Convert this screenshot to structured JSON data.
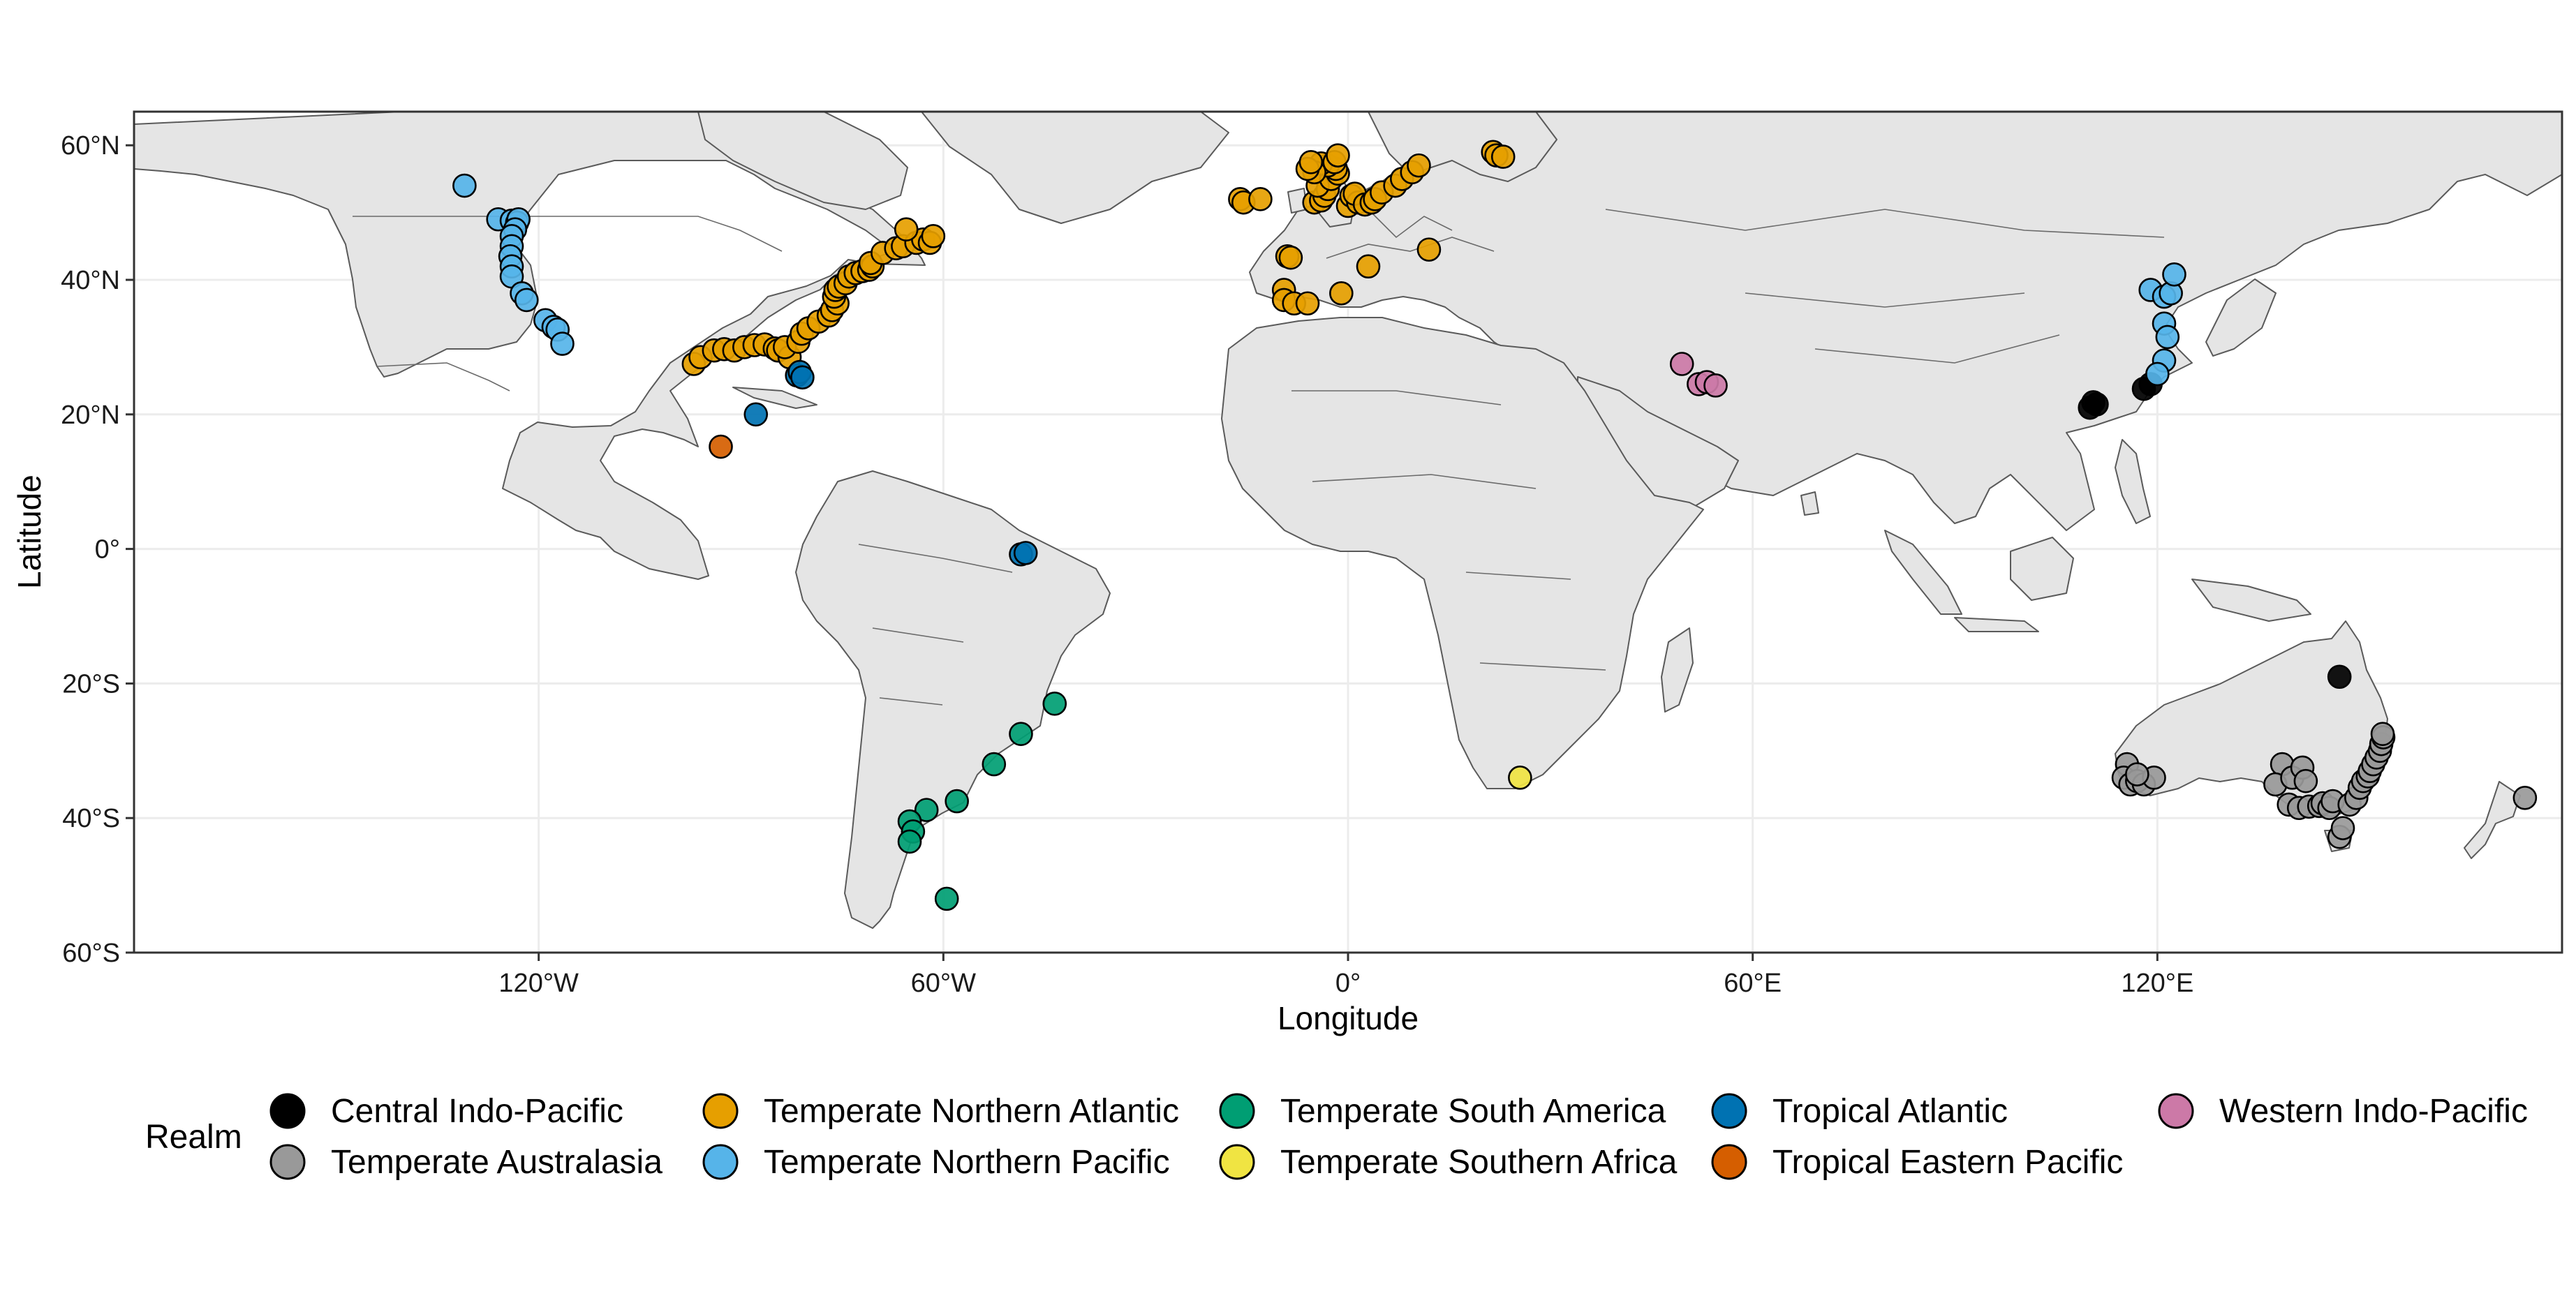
{
  "map": {
    "xlabel": "Longitude",
    "ylabel": "Latitude",
    "xlim": [
      -180,
      180
    ],
    "ylim": [
      -60,
      65
    ],
    "x_ticks": [
      {
        "value": -120,
        "label": "120°W"
      },
      {
        "value": -60,
        "label": "60°W"
      },
      {
        "value": 0,
        "label": "0°"
      },
      {
        "value": 60,
        "label": "60°E"
      },
      {
        "value": 120,
        "label": "120°E"
      }
    ],
    "y_ticks": [
      {
        "value": 60,
        "label": "60°N"
      },
      {
        "value": 40,
        "label": "40°N"
      },
      {
        "value": 20,
        "label": "20°N"
      },
      {
        "value": 0,
        "label": "0°"
      },
      {
        "value": -20,
        "label": "20°S"
      },
      {
        "value": -40,
        "label": "40°S"
      },
      {
        "value": -60,
        "label": "60°S"
      }
    ],
    "land_color": "#e5e5e5",
    "grid": true
  },
  "legend": {
    "title": "Realm",
    "position": "bottom",
    "items": [
      {
        "label": "Central Indo-Pacific",
        "color": "#000000"
      },
      {
        "label": "Temperate Australasia",
        "color": "#999999"
      },
      {
        "label": "Temperate Northern Atlantic",
        "color": "#E69F00"
      },
      {
        "label": "Temperate Northern Pacific",
        "color": "#56B4E9"
      },
      {
        "label": "Temperate South America",
        "color": "#009E73"
      },
      {
        "label": "Temperate Southern Africa",
        "color": "#F0E442"
      },
      {
        "label": "Tropical Atlantic",
        "color": "#0072B2"
      },
      {
        "label": "Tropical Eastern Pacific",
        "color": "#D55E00"
      },
      {
        "label": "Western Indo-Pacific",
        "color": "#CC79A7"
      }
    ]
  },
  "chart_data": {
    "type": "scatter",
    "xlabel": "Longitude",
    "ylabel": "Latitude",
    "xlim": [
      -180,
      180
    ],
    "ylim": [
      -60,
      65
    ],
    "series": [
      {
        "name": "Central Indo-Pacific",
        "color": "#000000",
        "points": [
          [
            111,
            21.5
          ],
          [
            110,
            21
          ],
          [
            110.5,
            21.8
          ],
          [
            118,
            23.8
          ],
          [
            119,
            24.5
          ],
          [
            147,
            -19
          ]
        ]
      },
      {
        "name": "Temperate Australasia",
        "color": "#999999",
        "points": [
          [
            115.5,
            -32
          ],
          [
            115,
            -34
          ],
          [
            116,
            -35
          ],
          [
            117,
            -34.5
          ],
          [
            118,
            -35
          ],
          [
            119.5,
            -34
          ],
          [
            117,
            -33.5
          ],
          [
            138.5,
            -32
          ],
          [
            137.5,
            -35
          ],
          [
            140,
            -34
          ],
          [
            141.5,
            -32.5
          ],
          [
            142,
            -34.5
          ],
          [
            139.5,
            -38
          ],
          [
            141,
            -38.5
          ],
          [
            142.5,
            -38.3
          ],
          [
            144,
            -38.2
          ],
          [
            144.5,
            -37.8
          ],
          [
            145.5,
            -38.5
          ],
          [
            146,
            -37.5
          ],
          [
            147,
            -42.8
          ],
          [
            147.5,
            -41.5
          ],
          [
            148.5,
            -38
          ],
          [
            149.5,
            -37
          ],
          [
            150,
            -35.5
          ],
          [
            150.5,
            -34.5
          ],
          [
            151.2,
            -33.8
          ],
          [
            151.5,
            -33
          ],
          [
            152,
            -32
          ],
          [
            152.5,
            -31
          ],
          [
            153,
            -30
          ],
          [
            153.2,
            -29
          ],
          [
            153.5,
            -28
          ],
          [
            153.4,
            -27.5
          ],
          [
            174.5,
            -37
          ]
        ]
      },
      {
        "name": "Temperate Northern Atlantic",
        "color": "#E69F00",
        "points": [
          [
            -97,
            27.5
          ],
          [
            -96,
            28.5
          ],
          [
            -94,
            29.5
          ],
          [
            -92.5,
            29.7
          ],
          [
            -91,
            29.5
          ],
          [
            -89.5,
            30
          ],
          [
            -88,
            30.3
          ],
          [
            -86.5,
            30.4
          ],
          [
            -85,
            29.8
          ],
          [
            -84.5,
            29.5
          ],
          [
            -82.8,
            28.5
          ],
          [
            -83.5,
            30
          ],
          [
            -81.5,
            30.8
          ],
          [
            -81,
            32
          ],
          [
            -80,
            32.8
          ],
          [
            -78.5,
            33.8
          ],
          [
            -77,
            34.7
          ],
          [
            -76.5,
            35.5
          ],
          [
            -75.7,
            36.5
          ],
          [
            -76.2,
            37.5
          ],
          [
            -76,
            38.5
          ],
          [
            -75.5,
            39
          ],
          [
            -74.5,
            39.5
          ],
          [
            -74,
            40.5
          ],
          [
            -73,
            41
          ],
          [
            -72,
            41.3
          ],
          [
            -71,
            41.5
          ],
          [
            -70.5,
            42
          ],
          [
            -70.8,
            42.5
          ],
          [
            -69,
            44
          ],
          [
            -67,
            44.7
          ],
          [
            -66,
            45
          ],
          [
            -64,
            45.5
          ],
          [
            -63,
            46
          ],
          [
            -62,
            45.5
          ],
          [
            -65.5,
            47.5
          ],
          [
            -61.5,
            46.5
          ],
          [
            -5,
            51.5
          ],
          [
            -4,
            51.8
          ],
          [
            -3.5,
            52.5
          ],
          [
            -3,
            53.5
          ],
          [
            -4.5,
            54
          ],
          [
            -2.5,
            55
          ],
          [
            -1.5,
            55.8
          ],
          [
            -1.8,
            56.5
          ],
          [
            -3,
            57
          ],
          [
            -4,
            57.3
          ],
          [
            -2,
            57.5
          ],
          [
            -5,
            56
          ],
          [
            -6,
            56.5
          ],
          [
            -5.5,
            57.5
          ],
          [
            -1.5,
            58.5
          ],
          [
            0,
            51
          ],
          [
            0.5,
            52.5
          ],
          [
            1.5,
            51.5
          ],
          [
            1,
            52.8
          ],
          [
            2.5,
            51.2
          ],
          [
            3.5,
            51.5
          ],
          [
            4,
            52
          ],
          [
            5,
            53
          ],
          [
            7,
            54
          ],
          [
            8,
            55
          ],
          [
            9.5,
            56
          ],
          [
            10.5,
            57
          ],
          [
            21.5,
            59
          ],
          [
            22,
            58.5
          ],
          [
            23,
            58.3
          ],
          [
            -16,
            52
          ],
          [
            -15.5,
            51.5
          ],
          [
            -13,
            52
          ],
          [
            -9,
            43.5
          ],
          [
            -8.5,
            43.3
          ],
          [
            -9.5,
            38.5
          ],
          [
            -9.5,
            37
          ],
          [
            -8,
            36.5
          ],
          [
            -6,
            36.5
          ],
          [
            -1,
            38
          ],
          [
            3,
            42
          ],
          [
            12,
            44.5
          ]
        ]
      },
      {
        "name": "Temperate Northern Pacific",
        "color": "#56B4E9",
        "points": [
          [
            -131,
            54
          ],
          [
            -126,
            49
          ],
          [
            -124,
            48.8
          ],
          [
            -123.2,
            48.5
          ],
          [
            -123,
            49
          ],
          [
            -123.5,
            47.5
          ],
          [
            -124,
            46.5
          ],
          [
            -124,
            45
          ],
          [
            -124.2,
            43.5
          ],
          [
            -124,
            42
          ],
          [
            -124,
            40.5
          ],
          [
            -122.5,
            38
          ],
          [
            -121.8,
            37
          ],
          [
            -119,
            34
          ],
          [
            -117.8,
            33
          ],
          [
            -117.2,
            32.6
          ],
          [
            -116.5,
            30.5
          ],
          [
            119,
            38.5
          ],
          [
            121,
            37.5
          ],
          [
            122,
            38
          ],
          [
            122.5,
            40.8
          ],
          [
            121,
            33.5
          ],
          [
            121.5,
            31.5
          ],
          [
            121,
            28
          ],
          [
            120,
            26
          ]
        ]
      },
      {
        "name": "Temperate South America",
        "color": "#009E73",
        "points": [
          [
            -43.5,
            -23
          ],
          [
            -48.5,
            -27.5
          ],
          [
            -52.5,
            -32
          ],
          [
            -58,
            -37.5
          ],
          [
            -62.5,
            -38.8
          ],
          [
            -65,
            -40.5
          ],
          [
            -64.5,
            -42
          ],
          [
            -65,
            -43.5
          ],
          [
            -59.5,
            -52
          ]
        ]
      },
      {
        "name": "Temperate Southern Africa",
        "color": "#F0E442",
        "points": [
          [
            25.5,
            -34
          ]
        ]
      },
      {
        "name": "Tropical Atlantic",
        "color": "#0072B2",
        "points": [
          [
            -81.7,
            25.8
          ],
          [
            -81.3,
            26.3
          ],
          [
            -80.9,
            25.5
          ],
          [
            -87.8,
            20
          ],
          [
            -48.5,
            -0.8
          ],
          [
            -47.8,
            -0.6
          ]
        ]
      },
      {
        "name": "Tropical Eastern Pacific",
        "color": "#D55E00",
        "points": [
          [
            -93,
            15.2
          ]
        ]
      },
      {
        "name": "Western Indo-Pacific",
        "color": "#CC79A7",
        "points": [
          [
            49.5,
            27.5
          ],
          [
            52,
            24.5
          ],
          [
            53.2,
            24.8
          ],
          [
            54.5,
            24.3
          ]
        ]
      }
    ]
  }
}
